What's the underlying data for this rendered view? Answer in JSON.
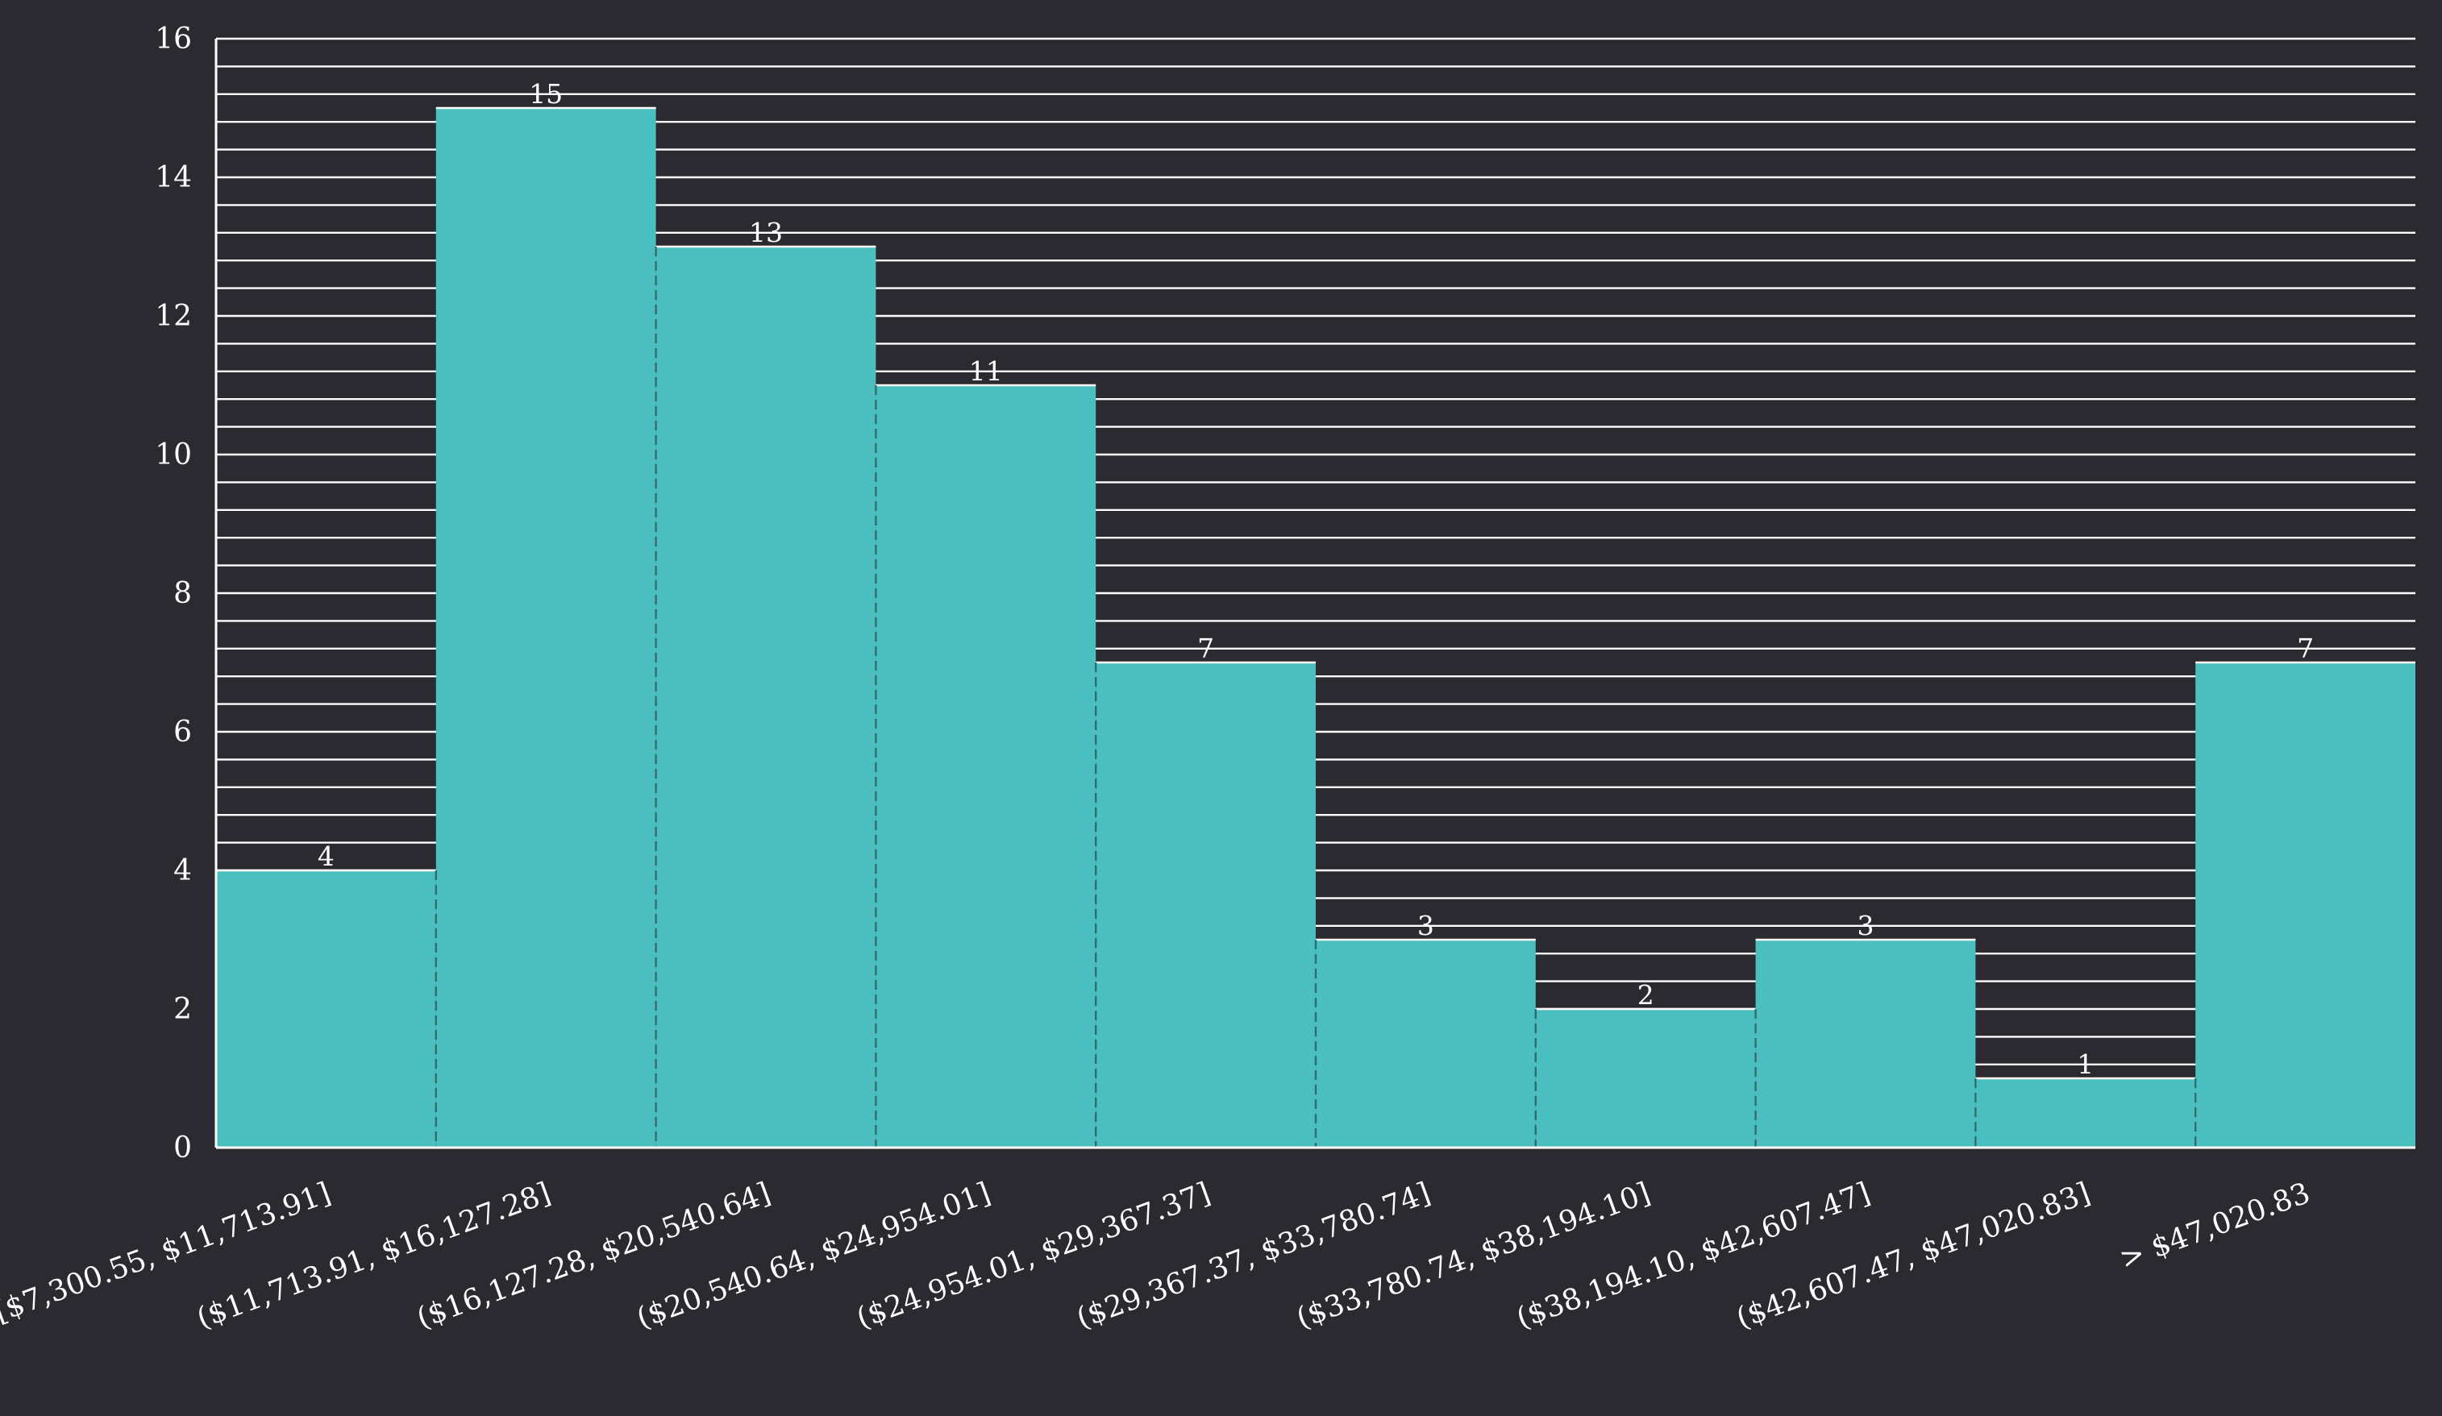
{
  "chart_data": {
    "type": "bar",
    "title": "",
    "xlabel": "",
    "ylabel": "",
    "categories": [
      "[$7,300.55, $11,713.91]",
      "($11,713.91, $16,127.28]",
      "($16,127.28, $20,540.64]",
      "($20,540.64, $24,954.01]",
      "($24,954.01, $29,367.37]",
      "($29,367.37, $33,780.74]",
      "($33,780.74, $38,194.10]",
      "($38,194.10, $42,607.47]",
      "($42,607.47, $47,020.83]",
      "> $47,020.83"
    ],
    "values": [
      4,
      15,
      13,
      11,
      7,
      3,
      2,
      3,
      1,
      7
    ],
    "ylim": [
      0,
      16
    ],
    "yticks": [
      "0",
      "2",
      "4",
      "6",
      "8",
      "10",
      "12",
      "14",
      "16"
    ],
    "grid": true,
    "grid_minor_step": 0.4,
    "colors": {
      "background": "#2b2a30",
      "bar": "#4bbfbf",
      "grid": "#ffffff",
      "text": "#ffffff"
    }
  }
}
